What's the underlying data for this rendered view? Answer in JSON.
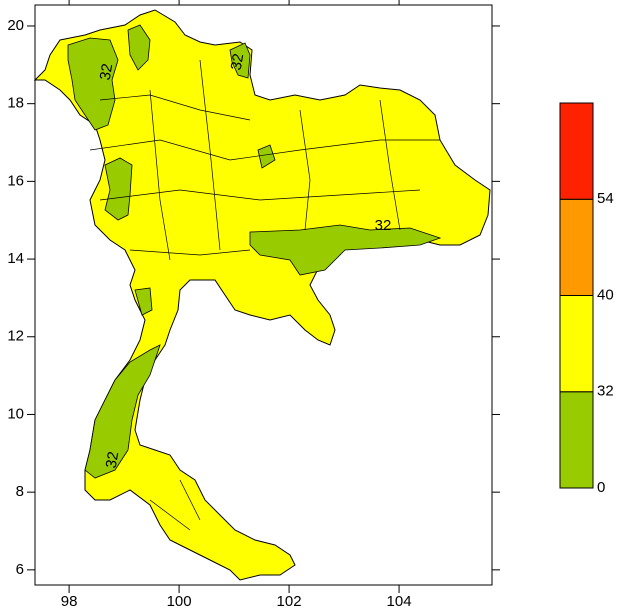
{
  "map": {
    "xlim": [
      97.38,
      105.69
    ],
    "ylim": [
      5.61,
      20.54
    ],
    "xticks": [
      98,
      100,
      102,
      104
    ],
    "yticks": [
      6,
      8,
      10,
      12,
      14,
      16,
      18,
      20
    ]
  },
  "colorbar": {
    "levels": [
      0,
      32,
      40,
      54
    ],
    "colors": [
      "#99cc00",
      "#ffff00",
      "#ff9900",
      "#ff2200"
    ]
  },
  "contour_labels": [
    "32",
    "32",
    "32",
    "32"
  ]
}
